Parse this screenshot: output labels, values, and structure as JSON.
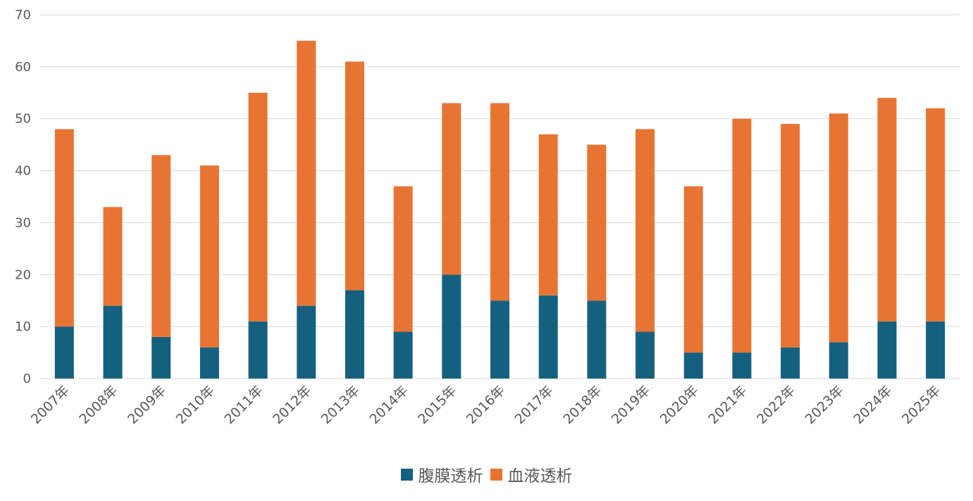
{
  "chart_data": {
    "type": "bar",
    "stacked": true,
    "categories": [
      "2007年",
      "2008年",
      "2009年",
      "2010年",
      "2011年",
      "2012年",
      "2013年",
      "2014年",
      "2015年",
      "2016年",
      "2017年",
      "2018年",
      "2019年",
      "2020年",
      "2021年",
      "2022年",
      "2023年",
      "2024年",
      "2025年"
    ],
    "series": [
      {
        "name": "腹膜透析",
        "color": "#16607f",
        "values": [
          10,
          14,
          8,
          6,
          11,
          14,
          17,
          9,
          20,
          15,
          16,
          15,
          9,
          5,
          5,
          6,
          7,
          11,
          11
        ]
      },
      {
        "name": "血液透析",
        "color": "#e87433",
        "values": [
          38,
          19,
          35,
          35,
          44,
          51,
          44,
          28,
          33,
          38,
          31,
          30,
          39,
          32,
          45,
          43,
          44,
          43,
          41
        ]
      }
    ],
    "ylim": [
      0,
      70
    ],
    "yticks": [
      0,
      10,
      20,
      30,
      40,
      50,
      60,
      70
    ],
    "grid": true,
    "legend": "bottom"
  }
}
